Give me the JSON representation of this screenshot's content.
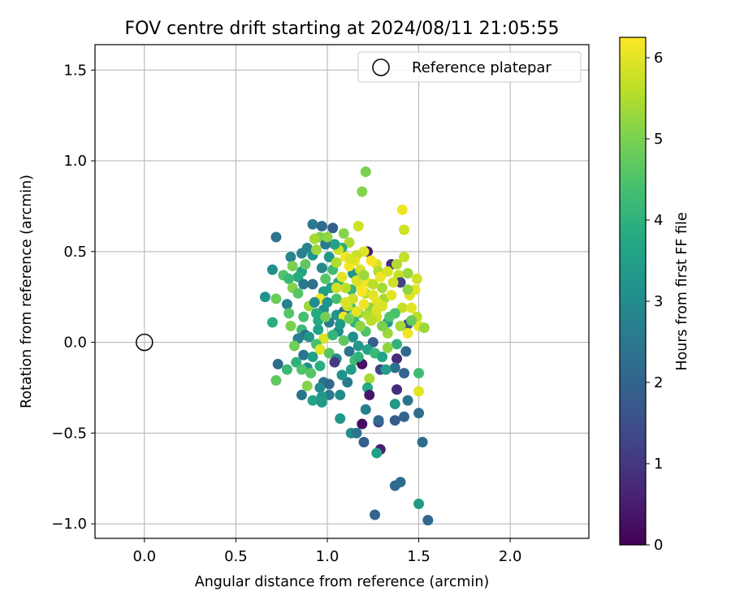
{
  "chart_data": {
    "type": "scatter",
    "title": "FOV centre drift starting at 2024/08/11 21:05:55",
    "xlabel": "Angular distance from reference (arcmin)",
    "ylabel": "Rotation from reference (arcmin)",
    "xlim": [
      -0.27,
      2.43
    ],
    "ylim": [
      -1.08,
      1.64
    ],
    "xticks": [
      0.0,
      0.5,
      1.0,
      1.5,
      2.0
    ],
    "xtick_labels": [
      "0.0",
      "0.5",
      "1.0",
      "1.5",
      "2.0"
    ],
    "yticks": [
      -1.0,
      -0.5,
      0.0,
      0.5,
      1.0,
      1.5
    ],
    "ytick_labels": [
      "−1.0",
      "−0.5",
      "0.0",
      "0.5",
      "1.0",
      "1.5"
    ],
    "grid": true,
    "legend": {
      "placement": "upper right",
      "entries": [
        "Reference platepar"
      ]
    },
    "reference_point": {
      "x": 0.0,
      "y": 0.0
    },
    "colorbar": {
      "label": "Hours from first FF file",
      "range": [
        0,
        6.25
      ],
      "ticks": [
        0,
        1,
        2,
        3,
        4,
        5,
        6
      ],
      "tick_labels": [
        "0",
        "1",
        "2",
        "3",
        "4",
        "5",
        "6"
      ],
      "colormap": "viridis"
    },
    "points": [
      [
        1.21,
        0.94,
        5.0
      ],
      [
        1.19,
        0.83,
        5.1
      ],
      [
        1.41,
        0.73,
        6.1
      ],
      [
        1.42,
        0.62,
        5.8
      ],
      [
        1.17,
        0.64,
        5.8
      ],
      [
        0.92,
        0.65,
        2.6
      ],
      [
        0.97,
        0.64,
        2.2
      ],
      [
        1.03,
        0.63,
        1.9
      ],
      [
        0.72,
        0.58,
        2.4
      ],
      [
        1.09,
        0.6,
        5.1
      ],
      [
        0.96,
        0.58,
        5.0
      ],
      [
        0.93,
        0.57,
        5.4
      ],
      [
        1.12,
        0.55,
        5.5
      ],
      [
        0.89,
        0.52,
        2.8
      ],
      [
        1.08,
        0.52,
        3.9
      ],
      [
        1.22,
        0.5,
        0.5
      ],
      [
        1.2,
        0.5,
        6.0
      ],
      [
        0.86,
        0.49,
        2.7
      ],
      [
        0.92,
        0.48,
        3.2
      ],
      [
        1.01,
        0.47,
        3.3
      ],
      [
        1.16,
        0.48,
        5.7
      ],
      [
        1.1,
        0.47,
        6.1
      ],
      [
        1.42,
        0.47,
        5.7
      ],
      [
        0.8,
        0.47,
        2.8
      ],
      [
        1.15,
        0.45,
        6.0
      ],
      [
        1.35,
        0.43,
        0.8
      ],
      [
        1.38,
        0.43,
        5.5
      ],
      [
        1.27,
        0.43,
        5.9
      ],
      [
        0.81,
        0.42,
        5.0
      ],
      [
        0.7,
        0.4,
        3.1
      ],
      [
        1.03,
        0.4,
        4.3
      ],
      [
        1.14,
        0.38,
        3.3
      ],
      [
        0.86,
        0.39,
        3.6
      ],
      [
        1.28,
        0.39,
        5.5
      ],
      [
        1.44,
        0.38,
        5.3
      ],
      [
        1.39,
        0.37,
        5.7
      ],
      [
        0.76,
        0.37,
        4.5
      ],
      [
        0.84,
        0.36,
        3.8
      ],
      [
        0.79,
        0.35,
        4.2
      ],
      [
        1.49,
        0.35,
        5.8
      ],
      [
        0.99,
        0.35,
        4.6
      ],
      [
        1.4,
        0.33,
        1.2
      ],
      [
        1.06,
        0.33,
        3.8
      ],
      [
        0.92,
        0.32,
        2.3
      ],
      [
        0.87,
        0.32,
        2.5
      ],
      [
        1.17,
        0.32,
        6.1
      ],
      [
        0.81,
        0.3,
        5.1
      ],
      [
        1.3,
        0.3,
        5.4
      ],
      [
        1.13,
        0.29,
        4.1
      ],
      [
        1.48,
        0.29,
        6.0
      ],
      [
        0.98,
        0.28,
        3.4
      ],
      [
        1.21,
        0.27,
        5.6
      ],
      [
        0.66,
        0.25,
        3.2
      ],
      [
        0.72,
        0.24,
        4.8
      ],
      [
        0.96,
        0.24,
        6.1
      ],
      [
        1.05,
        0.24,
        4.4
      ],
      [
        1.31,
        0.24,
        5.4
      ],
      [
        1.27,
        0.22,
        6.0
      ],
      [
        0.78,
        0.21,
        2.7
      ],
      [
        0.9,
        0.2,
        5.3
      ],
      [
        1.13,
        0.19,
        4.2
      ],
      [
        1.23,
        0.19,
        5.1
      ],
      [
        1.41,
        0.19,
        5.7
      ],
      [
        1.46,
        0.19,
        6.0
      ],
      [
        0.98,
        0.18,
        3.0
      ],
      [
        1.09,
        0.17,
        2.1
      ],
      [
        0.79,
        0.16,
        4.6
      ],
      [
        0.94,
        0.16,
        3.8
      ],
      [
        1.17,
        0.16,
        4.9
      ],
      [
        1.37,
        0.16,
        4.4
      ],
      [
        1.05,
        0.15,
        3.2
      ],
      [
        0.87,
        0.14,
        4.4
      ],
      [
        1.27,
        0.14,
        5.8
      ],
      [
        1.49,
        0.14,
        5.6
      ],
      [
        0.7,
        0.11,
        3.9
      ],
      [
        1.01,
        0.11,
        2.6
      ],
      [
        1.15,
        0.11,
        4.1
      ],
      [
        1.33,
        0.11,
        3.4
      ],
      [
        1.44,
        0.1,
        1.6
      ],
      [
        0.8,
        0.09,
        5.0
      ],
      [
        1.5,
        0.09,
        6.0
      ],
      [
        1.53,
        0.08,
        5.3
      ],
      [
        0.86,
        0.07,
        4.2
      ],
      [
        0.95,
        0.07,
        3.6
      ],
      [
        1.06,
        0.06,
        3.0
      ],
      [
        1.21,
        0.06,
        4.5
      ],
      [
        1.33,
        0.05,
        5.3
      ],
      [
        1.44,
        0.05,
        6.1
      ],
      [
        0.88,
        0.04,
        2.2
      ],
      [
        1.14,
        0.03,
        3.1
      ],
      [
        0.98,
        0.02,
        5.9
      ],
      [
        0.84,
        0.02,
        2.7
      ],
      [
        1.09,
        0.01,
        4.7
      ],
      [
        1.25,
        0.0,
        1.9
      ],
      [
        1.38,
        -0.01,
        4.0
      ],
      [
        0.94,
        -0.01,
        4.4
      ],
      [
        0.82,
        -0.02,
        4.9
      ],
      [
        1.17,
        -0.02,
        3.3
      ],
      [
        1.33,
        -0.03,
        5.2
      ],
      [
        1.43,
        -0.05,
        2.1
      ],
      [
        0.96,
        -0.04,
        6.0
      ],
      [
        1.22,
        -0.04,
        3.6
      ],
      [
        1.01,
        -0.06,
        4.6
      ],
      [
        1.12,
        -0.05,
        2.4
      ],
      [
        0.87,
        -0.07,
        2.4
      ],
      [
        1.26,
        -0.06,
        4.2
      ],
      [
        0.92,
        -0.08,
        3.5
      ],
      [
        1.05,
        -0.09,
        3.0
      ],
      [
        1.38,
        -0.09,
        0.8
      ],
      [
        1.15,
        -0.1,
        4.3
      ],
      [
        0.83,
        -0.11,
        4.0
      ],
      [
        1.04,
        -0.11,
        1.1
      ],
      [
        1.19,
        -0.12,
        0.3
      ],
      [
        0.73,
        -0.12,
        2.2
      ],
      [
        0.96,
        -0.13,
        3.9
      ],
      [
        0.89,
        -0.14,
        3.1
      ],
      [
        1.37,
        -0.14,
        2.3
      ],
      [
        1.29,
        -0.15,
        1.3
      ],
      [
        1.32,
        -0.15,
        3.5
      ],
      [
        0.86,
        -0.15,
        4.5
      ],
      [
        0.78,
        -0.15,
        4.2
      ],
      [
        1.42,
        -0.17,
        2.0
      ],
      [
        1.5,
        -0.17,
        4.3
      ],
      [
        0.91,
        -0.17,
        4.6
      ],
      [
        1.23,
        -0.2,
        5.4
      ],
      [
        0.72,
        -0.21,
        4.7
      ],
      [
        1.11,
        -0.22,
        2.6
      ],
      [
        0.98,
        -0.22,
        2.4
      ],
      [
        1.01,
        -0.23,
        2.1
      ],
      [
        0.89,
        -0.24,
        5.1
      ],
      [
        0.96,
        -0.25,
        3.0
      ],
      [
        1.22,
        -0.25,
        3.8
      ],
      [
        1.38,
        -0.26,
        0.8
      ],
      [
        1.5,
        -0.27,
        6.0
      ],
      [
        0.86,
        -0.29,
        2.4
      ],
      [
        1.23,
        -0.29,
        0.4
      ],
      [
        1.01,
        -0.29,
        2.6
      ],
      [
        1.07,
        -0.29,
        3.0
      ],
      [
        0.97,
        -0.3,
        3.3
      ],
      [
        1.44,
        -0.32,
        2.4
      ],
      [
        0.92,
        -0.32,
        3.6
      ],
      [
        0.97,
        -0.33,
        3.4
      ],
      [
        1.37,
        -0.34,
        3.3
      ],
      [
        1.21,
        -0.37,
        2.7
      ],
      [
        1.5,
        -0.39,
        2.3
      ],
      [
        1.42,
        -0.41,
        2.0
      ],
      [
        1.07,
        -0.42,
        3.3
      ],
      [
        1.37,
        -0.43,
        1.8
      ],
      [
        1.28,
        -0.44,
        1.3
      ],
      [
        1.19,
        -0.45,
        0.2
      ],
      [
        1.28,
        -0.43,
        2.1
      ],
      [
        1.13,
        -0.5,
        3.0
      ],
      [
        1.16,
        -0.5,
        2.4
      ],
      [
        1.2,
        -0.55,
        1.9
      ],
      [
        1.52,
        -0.55,
        2.2
      ],
      [
        1.29,
        -0.59,
        0.5
      ],
      [
        1.27,
        -0.61,
        3.5
      ],
      [
        1.37,
        -0.79,
        2.1
      ],
      [
        1.4,
        -0.77,
        2.2
      ],
      [
        1.5,
        -0.89,
        3.4
      ],
      [
        1.26,
        -0.95,
        2.0
      ],
      [
        1.55,
        -0.98,
        2.1
      ],
      [
        1.06,
        0.51,
        5.8
      ],
      [
        1.12,
        0.42,
        6.2
      ],
      [
        1.18,
        0.4,
        5.9
      ],
      [
        1.08,
        0.36,
        6.0
      ],
      [
        1.16,
        0.34,
        5.9
      ],
      [
        1.22,
        0.33,
        6.1
      ],
      [
        1.1,
        0.3,
        5.6
      ],
      [
        1.19,
        0.28,
        6.2
      ],
      [
        1.25,
        0.26,
        6.0
      ],
      [
        1.14,
        0.24,
        5.8
      ],
      [
        1.2,
        0.21,
        6.1
      ],
      [
        1.11,
        0.2,
        5.7
      ],
      [
        1.27,
        0.18,
        5.9
      ],
      [
        1.16,
        0.17,
        6.0
      ],
      [
        1.22,
        0.15,
        5.5
      ],
      [
        1.09,
        0.14,
        6.1
      ],
      [
        1.25,
        0.32,
        5.6
      ],
      [
        1.3,
        0.2,
        5.9
      ],
      [
        1.13,
        0.46,
        5.9
      ],
      [
        1.24,
        0.45,
        6.2
      ],
      [
        1.05,
        0.44,
        5.5
      ],
      [
        1.35,
        0.26,
        6.0
      ],
      [
        1.29,
        0.36,
        6.1
      ],
      [
        1.02,
        0.3,
        3.5
      ],
      [
        1.0,
        0.22,
        3.2
      ],
      [
        0.95,
        0.12,
        3.8
      ],
      [
        1.07,
        0.1,
        3.4
      ],
      [
        0.9,
        0.03,
        3.3
      ],
      [
        1.12,
        0.13,
        4.9
      ],
      [
        1.18,
        0.09,
        5.2
      ],
      [
        1.03,
        0.04,
        4.1
      ],
      [
        0.99,
        0.14,
        4.9
      ],
      [
        1.3,
        0.09,
        5.0
      ],
      [
        1.24,
        0.12,
        5.6
      ],
      [
        0.93,
        0.22,
        3.0
      ],
      [
        0.84,
        0.27,
        4.6
      ],
      [
        0.88,
        0.43,
        4.7
      ],
      [
        0.97,
        0.41,
        2.9
      ],
      [
        1.04,
        0.54,
        3.6
      ],
      [
        0.99,
        0.54,
        2.5
      ],
      [
        0.94,
        0.51,
        5.3
      ],
      [
        1.0,
        0.58,
        5.2
      ],
      [
        1.13,
        -0.15,
        3.5
      ],
      [
        1.08,
        -0.18,
        3.2
      ],
      [
        1.17,
        -0.08,
        4.0
      ],
      [
        1.3,
        -0.08,
        3.7
      ],
      [
        1.34,
        0.14,
        4.5
      ],
      [
        1.4,
        0.09,
        5.4
      ],
      [
        1.46,
        0.12,
        4.8
      ],
      [
        1.45,
        0.26,
        6.0
      ],
      [
        1.36,
        0.33,
        5.8
      ],
      [
        1.44,
        0.29,
        5.2
      ],
      [
        1.2,
        0.37,
        5.3
      ],
      [
        1.33,
        0.39,
        5.9
      ],
      [
        1.1,
        0.22,
        5.9
      ],
      [
        1.05,
        0.3,
        5.8
      ]
    ]
  }
}
